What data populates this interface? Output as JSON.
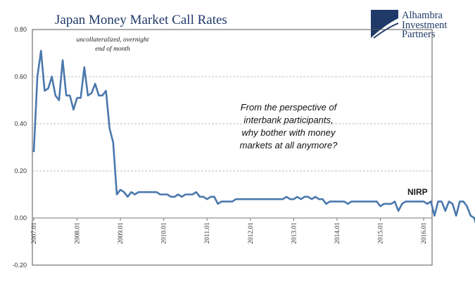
{
  "chart_data": {
    "type": "line",
    "title": "Japan Money Market Call Rates",
    "subtitle_lines": [
      "uncollateralized, overnight",
      "end of month"
    ],
    "annotation_lines": [
      "From the perspective of",
      "interbank participants,",
      "why bother with money",
      "markets at all anymore?"
    ],
    "nirp_label": "NIRP",
    "ylim": [
      -0.2,
      0.8
    ],
    "yticks": [
      "0.80",
      "0.60",
      "0.40",
      "0.20",
      "0.00",
      "-0.20"
    ],
    "ytick_values": [
      0.8,
      0.6,
      0.4,
      0.2,
      0.0,
      -0.2
    ],
    "xticks": [
      "2007.01",
      "2008.01",
      "2009.01",
      "2010.01",
      "2011.01",
      "2012.01",
      "2013.01",
      "2014.01",
      "2015.01",
      "2016.01"
    ],
    "x_start": "2007.01",
    "grid": "horizontal-dashed",
    "line_color": "#4a78ad",
    "series": [
      {
        "values": [
          0.28,
          0.6,
          0.71,
          0.54,
          0.55,
          0.6,
          0.52,
          0.5,
          0.67,
          0.52,
          0.52,
          0.46,
          0.51,
          0.51,
          0.64,
          0.52,
          0.53,
          0.57,
          0.52,
          0.52,
          0.54,
          0.38,
          0.32,
          0.1,
          0.12,
          0.11,
          0.09,
          0.11,
          0.1,
          0.11,
          0.11,
          0.11,
          0.11,
          0.11,
          0.11,
          0.1,
          0.1,
          0.1,
          0.09,
          0.09,
          0.1,
          0.09,
          0.1,
          0.1,
          0.1,
          0.11,
          0.09,
          0.09,
          0.08,
          0.09,
          0.09,
          0.06,
          0.07,
          0.07,
          0.07,
          0.07,
          0.08,
          0.08,
          0.08,
          0.08,
          0.08,
          0.08,
          0.08,
          0.08,
          0.08,
          0.08,
          0.08,
          0.08,
          0.08,
          0.08,
          0.09,
          0.08,
          0.08,
          0.09,
          0.08,
          0.09,
          0.09,
          0.08,
          0.09,
          0.08,
          0.08,
          0.06,
          0.07,
          0.07,
          0.07,
          0.07,
          0.07,
          0.06,
          0.07,
          0.07,
          0.07,
          0.07,
          0.07,
          0.07,
          0.07,
          0.07,
          0.05,
          0.06,
          0.06,
          0.06,
          0.07,
          0.03,
          0.06,
          0.07,
          0.07,
          0.07,
          0.07,
          0.07,
          0.07,
          0.06,
          0.07,
          0.01,
          0.07,
          0.07,
          0.03,
          0.07,
          0.06,
          0.01,
          0.07,
          0.07,
          0.05,
          0.01,
          -0.0,
          -0.05,
          -0.05,
          -0.06,
          -0.04
        ]
      }
    ]
  },
  "logo": {
    "line1": "Alhambra",
    "line2": "Investment",
    "line3": "Partners",
    "color": "#1f3a68"
  }
}
